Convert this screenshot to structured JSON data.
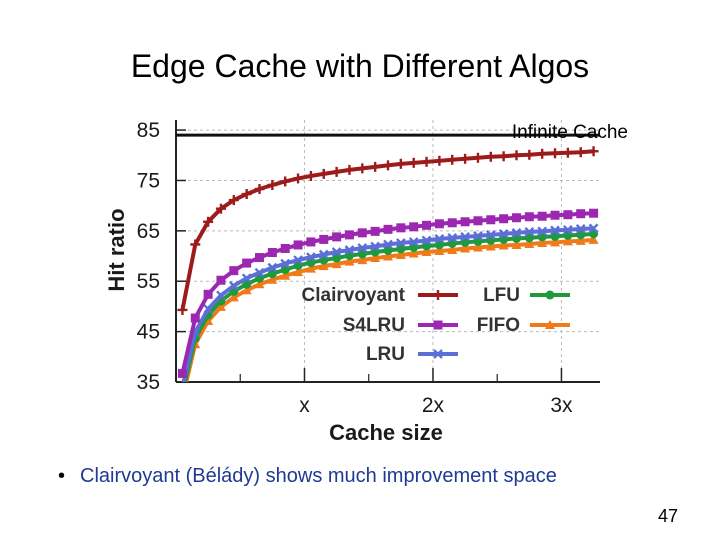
{
  "slide": {
    "title": "Edge Cache with Different Algos",
    "bullet_dot": "•",
    "bullet_prefix": "Clairvoyant (",
    "bullet_highlight": "Bélády",
    "bullet_suffix": ") shows much improvement space",
    "page_number": "47"
  },
  "chart_data": {
    "type": "line",
    "title": "",
    "xlabel": "Cache size",
    "ylabel": "Hit ratio",
    "x_ticks": [
      "x",
      "2x",
      "3x"
    ],
    "y_ticks": [
      35,
      45,
      55,
      65,
      75,
      85
    ],
    "xlim": [
      0.0,
      3.3
    ],
    "ylim": [
      35,
      87
    ],
    "grid": true,
    "legend_position": "lower-right",
    "annotation": "Infinite Cache",
    "reference_line": {
      "label": "Infinite Cache",
      "y": 84,
      "color": "#111111"
    },
    "x": [
      0.05,
      0.15,
      0.25,
      0.35,
      0.45,
      0.55,
      0.65,
      0.75,
      0.85,
      0.95,
      1.05,
      1.15,
      1.25,
      1.35,
      1.45,
      1.55,
      1.65,
      1.75,
      1.85,
      1.95,
      2.05,
      2.15,
      2.25,
      2.35,
      2.45,
      2.55,
      2.65,
      2.75,
      2.85,
      2.95,
      3.05,
      3.15,
      3.25
    ],
    "series": [
      {
        "name": "Clairvoyant",
        "color": "#9e1b1b",
        "marker": "plus",
        "values": [
          49.3,
          62.3,
          66.8,
          69.4,
          71.1,
          72.3,
          73.3,
          74.1,
          74.8,
          75.4,
          75.9,
          76.3,
          76.7,
          77.1,
          77.4,
          77.7,
          78.0,
          78.3,
          78.5,
          78.7,
          78.9,
          79.1,
          79.3,
          79.5,
          79.7,
          79.8,
          80.0,
          80.1,
          80.3,
          80.4,
          80.5,
          80.6,
          80.8
        ]
      },
      {
        "name": "S4LRU",
        "color": "#9c27b0",
        "marker": "square",
        "values": [
          36.7,
          47.7,
          52.4,
          55.2,
          57.1,
          58.6,
          59.7,
          60.7,
          61.5,
          62.2,
          62.8,
          63.3,
          63.8,
          64.2,
          64.6,
          64.9,
          65.3,
          65.6,
          65.8,
          66.1,
          66.4,
          66.6,
          66.8,
          67.0,
          67.2,
          67.4,
          67.6,
          67.8,
          67.9,
          68.1,
          68.2,
          68.4,
          68.5
        ]
      },
      {
        "name": "LRU",
        "color": "#5b6fd6",
        "marker": "x",
        "values": [
          34.0,
          44.9,
          49.5,
          52.2,
          54.1,
          55.6,
          56.7,
          57.7,
          58.5,
          59.2,
          59.8,
          60.3,
          60.8,
          61.2,
          61.6,
          61.9,
          62.3,
          62.6,
          62.8,
          63.1,
          63.4,
          63.6,
          63.8,
          64.0,
          64.2,
          64.4,
          64.6,
          64.8,
          64.9,
          65.1,
          65.2,
          65.4,
          65.5
        ]
      },
      {
        "name": "LFU",
        "color": "#1e9a3c",
        "marker": "circle",
        "values": [
          32.8,
          43.7,
          48.3,
          51.1,
          53.0,
          54.4,
          55.6,
          56.5,
          57.3,
          58.1,
          58.7,
          59.2,
          59.6,
          60.1,
          60.4,
          60.8,
          61.1,
          61.4,
          61.7,
          62.0,
          62.2,
          62.5,
          62.7,
          62.9,
          63.1,
          63.3,
          63.5,
          63.6,
          63.8,
          63.9,
          64.1,
          64.2,
          64.4
        ]
      },
      {
        "name": "FIFO",
        "color": "#f07a18",
        "marker": "triangle",
        "values": [
          31.7,
          42.5,
          47.1,
          49.9,
          51.8,
          53.2,
          54.4,
          55.3,
          56.1,
          56.8,
          57.5,
          58.0,
          58.4,
          58.9,
          59.2,
          59.6,
          59.9,
          60.2,
          60.5,
          60.8,
          61.0,
          61.2,
          61.5,
          61.7,
          61.9,
          62.1,
          62.2,
          62.4,
          62.6,
          62.7,
          62.9,
          63.0,
          63.2
        ]
      }
    ]
  }
}
